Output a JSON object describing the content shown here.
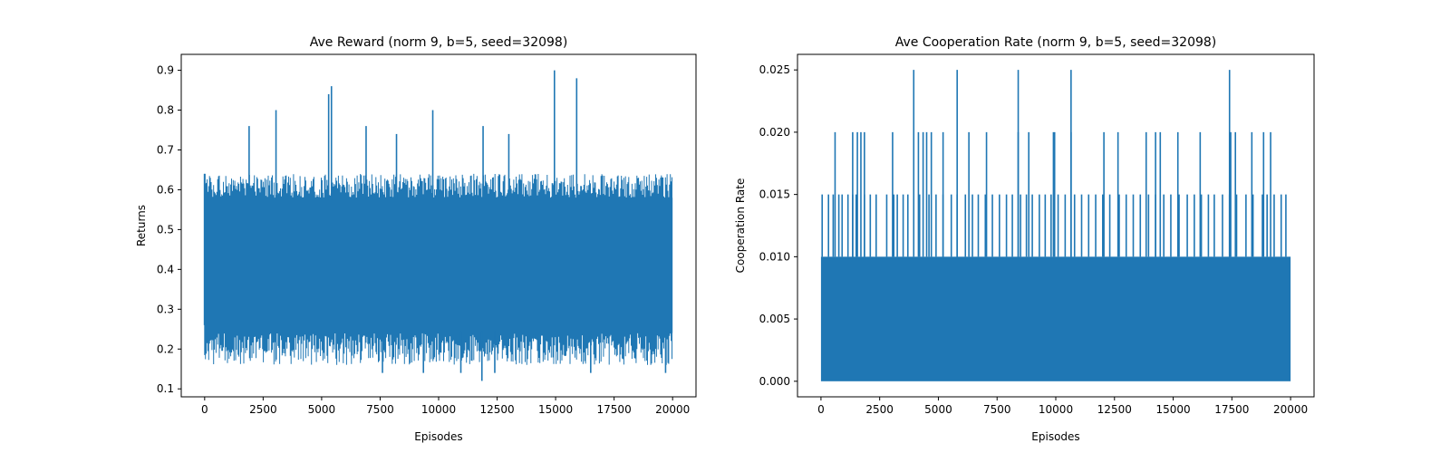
{
  "chart_data": [
    {
      "type": "line",
      "title": "Ave Reward (norm 9, b=5, seed=32098)",
      "xlabel": "Episodes",
      "ylabel": "Returns",
      "xlim": [
        -1000,
        21000
      ],
      "ylim": [
        0.08,
        0.94
      ],
      "xticks": [
        "0",
        "2500",
        "5000",
        "7500",
        "10000",
        "12500",
        "15000",
        "17500",
        "20000"
      ],
      "yticks": [
        "0.1",
        "0.2",
        "0.3",
        "0.4",
        "0.5",
        "0.6",
        "0.7",
        "0.8",
        "0.9"
      ],
      "color": "#1f77b4",
      "grid": false,
      "series": [
        {
          "x_range": [
            0,
            20000
          ],
          "band_low": 0.24,
          "band_high": 0.58,
          "envelope_low": 0.16,
          "envelope_high": 0.64,
          "peaks": [
            {
              "x": 0,
              "y": 0.64
            },
            {
              "x": 1900,
              "y": 0.76
            },
            {
              "x": 3050,
              "y": 0.8
            },
            {
              "x": 5300,
              "y": 0.84
            },
            {
              "x": 5420,
              "y": 0.86
            },
            {
              "x": 6900,
              "y": 0.76
            },
            {
              "x": 9750,
              "y": 0.8
            },
            {
              "x": 11900,
              "y": 0.76
            },
            {
              "x": 14950,
              "y": 0.9
            },
            {
              "x": 15900,
              "y": 0.88
            },
            {
              "x": 13000,
              "y": 0.74
            },
            {
              "x": 8200,
              "y": 0.74
            }
          ],
          "troughs": [
            {
              "x": 7600,
              "y": 0.14
            },
            {
              "x": 9350,
              "y": 0.14
            },
            {
              "x": 10950,
              "y": 0.14
            },
            {
              "x": 11850,
              "y": 0.12
            },
            {
              "x": 16500,
              "y": 0.14
            },
            {
              "x": 19700,
              "y": 0.14
            },
            {
              "x": 12400,
              "y": 0.14
            }
          ]
        }
      ]
    },
    {
      "type": "line",
      "title": "Ave Cooperation Rate (norm 9, b=5, seed=32098)",
      "xlabel": "Episodes",
      "ylabel": "Cooperation Rate",
      "xlim": [
        -1000,
        21000
      ],
      "ylim": [
        -0.00125,
        0.02625
      ],
      "xticks": [
        "0",
        "2500",
        "5000",
        "7500",
        "10000",
        "12500",
        "15000",
        "17500",
        "20000"
      ],
      "yticks": [
        "0.000",
        "0.005",
        "0.010",
        "0.015",
        "0.020",
        "0.025"
      ],
      "color": "#1f77b4",
      "grid": false,
      "series": [
        {
          "x_range": [
            0,
            20000
          ],
          "band_low": 0.0,
          "band_high": 0.01,
          "spikes_015": [
            50,
            320,
            520,
            760,
            900,
            1150,
            1350,
            1500,
            1850,
            2100,
            2350,
            2800,
            3100,
            3250,
            3500,
            3700,
            4200,
            4600,
            4900,
            5200,
            5550,
            5800,
            6150,
            6450,
            6700,
            7000,
            7300,
            7600,
            7900,
            8150,
            8500,
            8750,
            9000,
            9300,
            9550,
            9800,
            10100,
            10400,
            10800,
            11100,
            11400,
            11700,
            12000,
            12300,
            12700,
            13000,
            13300,
            13600,
            13950,
            14250,
            14600,
            14900,
            15250,
            15600,
            15900,
            16200,
            16500,
            16750,
            17100,
            17400,
            17700,
            18100,
            18400,
            18800,
            19000,
            19300,
            19600,
            19800
          ],
          "spikes_020": [
            600,
            1350,
            1550,
            1700,
            1850,
            3050,
            4150,
            4350,
            4500,
            4700,
            5200,
            6300,
            7050,
            8400,
            8850,
            9900,
            9950,
            10650,
            12050,
            12650,
            13850,
            14250,
            14450,
            15200,
            16150,
            17450,
            17650,
            18350,
            18850,
            19150
          ],
          "spikes_025": [
            3950,
            5800,
            8400,
            10650,
            17400
          ]
        }
      ]
    }
  ]
}
